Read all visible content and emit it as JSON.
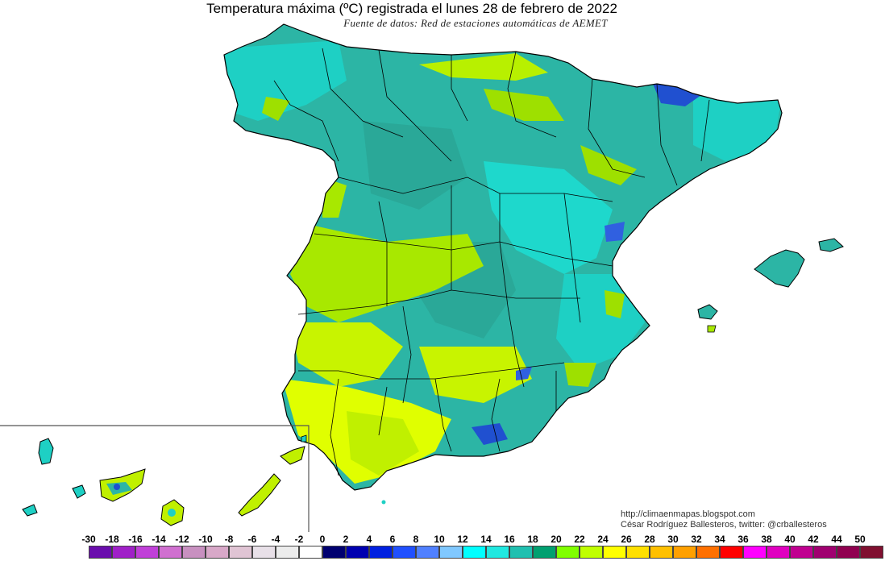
{
  "title": "Temperatura máxima (ºC) registrada el lunes 28 de febrero de 2022",
  "subtitle": "Fuente de datos: Red de estaciones automáticas de AEMET",
  "credits": {
    "blog": "http://climaenmapas.blogspot.com",
    "author": "César Rodríguez Ballesteros, twitter: @crballesteros"
  },
  "colors": {
    "background": "#ffffff",
    "teal_dominant": "#2cb5a5",
    "cyan": "#1ee0d8",
    "green_yellow": "#b8f000",
    "yellow": "#e8ff00",
    "blue_cold": "#2040d0",
    "border": "#000000"
  },
  "legend": {
    "unit": "ºC",
    "ticks": [
      "-30",
      "-18",
      "-16",
      "-14",
      "-12",
      "-10",
      "-8",
      "-6",
      "-4",
      "-2",
      "0",
      "2",
      "4",
      "6",
      "8",
      "10",
      "12",
      "14",
      "16",
      "18",
      "20",
      "22",
      "24",
      "26",
      "28",
      "30",
      "32",
      "34",
      "36",
      "38",
      "40",
      "42",
      "44",
      "50"
    ],
    "swatch_colors": [
      "#6a0dad",
      "#a020c8",
      "#c040d8",
      "#d070d0",
      "#c890c0",
      "#d8a8c8",
      "#e0c4d4",
      "#e8e0e8",
      "#ececec",
      "#ffffff",
      "#000070",
      "#0000b0",
      "#0020e0",
      "#2050ff",
      "#5080ff",
      "#80c8ff",
      "#00ffff",
      "#20e8e0",
      "#20c0b0",
      "#00a070",
      "#80ff00",
      "#c0ff00",
      "#ffff00",
      "#ffe000",
      "#ffc000",
      "#ffa000",
      "#ff7000",
      "#ff0000",
      "#ff00ff",
      "#e000c0",
      "#c00090",
      "#a00070",
      "#900050",
      "#801030"
    ]
  },
  "regions": {
    "peninsula": "Península Ibérica",
    "balearics": "Islas Baleares",
    "canaries": "Islas Canarias"
  }
}
